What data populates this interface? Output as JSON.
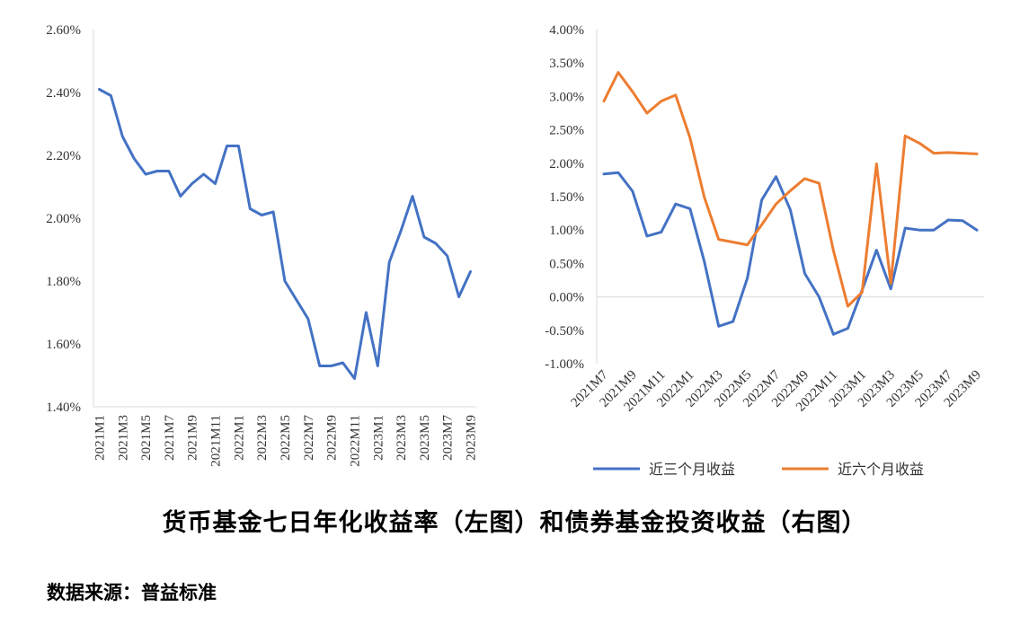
{
  "caption": "货币基金七日年化收益率（左图）和债券基金投资收益（右图）",
  "source": "数据来源：普益标准",
  "colors": {
    "blue": "#4472C4",
    "orange": "#ED7D31",
    "axis": "#D9D9D9",
    "text": "#333333"
  },
  "chart_data": [
    {
      "type": "line",
      "title": "",
      "categories": [
        "2021M1",
        "2021M2",
        "2021M3",
        "2021M4",
        "2021M5",
        "2021M6",
        "2021M7",
        "2021M8",
        "2021M9",
        "2021M10",
        "2021M11",
        "2021M12",
        "2022M1",
        "2022M2",
        "2022M3",
        "2022M4",
        "2022M5",
        "2022M6",
        "2022M7",
        "2022M8",
        "2022M9",
        "2022M10",
        "2022M11",
        "2022M12",
        "2023M1",
        "2023M2",
        "2023M3",
        "2023M4",
        "2023M5",
        "2023M6",
        "2023M7",
        "2023M8",
        "2023M9"
      ],
      "tick_labels": [
        "2021M1",
        "2021M3",
        "2021M5",
        "2021M7",
        "2021M9",
        "2021M11",
        "2022M1",
        "2022M3",
        "2022M5",
        "2022M7",
        "2022M9",
        "2022M11",
        "2023M1",
        "2023M3",
        "2023M5",
        "2023M7",
        "2023M9"
      ],
      "y_ticks": [
        "2.60%",
        "2.40%",
        "2.20%",
        "2.00%",
        "1.80%",
        "1.60%",
        "1.40%"
      ],
      "ylim": [
        1.4,
        2.6
      ],
      "grid": false,
      "series": [
        {
          "values": [
            2.41,
            2.39,
            2.26,
            2.19,
            2.14,
            2.15,
            2.15,
            2.07,
            2.11,
            2.14,
            2.11,
            2.23,
            2.23,
            2.03,
            2.01,
            2.02,
            1.8,
            1.74,
            1.68,
            1.53,
            1.53,
            1.54,
            1.49,
            1.7,
            1.53,
            1.86,
            1.96,
            2.07,
            1.94,
            1.92,
            1.88,
            1.75,
            1.83
          ],
          "color": "#4472C4"
        }
      ]
    },
    {
      "type": "line",
      "title": "",
      "categories": [
        "2021M7",
        "2021M8",
        "2021M9",
        "2021M10",
        "2021M11",
        "2021M12",
        "2022M1",
        "2022M2",
        "2022M3",
        "2022M4",
        "2022M5",
        "2022M6",
        "2022M7",
        "2022M8",
        "2022M9",
        "2022M10",
        "2022M11",
        "2022M12",
        "2023M1",
        "2023M2",
        "2023M3",
        "2023M4",
        "2023M5",
        "2023M6",
        "2023M7",
        "2023M8",
        "2023M9"
      ],
      "tick_labels": [
        "2021M7",
        "2021M9",
        "2021M11",
        "2022M1",
        "2022M3",
        "2022M5",
        "2022M7",
        "2022M9",
        "2022M11",
        "2023M1",
        "2023M3",
        "2023M5",
        "2023M7",
        "2023M9"
      ],
      "y_ticks": [
        "4.00%",
        "3.50%",
        "3.00%",
        "2.50%",
        "2.00%",
        "1.50%",
        "1.00%",
        "0.50%",
        "0.00%",
        "-0.50%",
        "-1.00%"
      ],
      "ylim": [
        -1.0,
        4.0
      ],
      "grid": false,
      "legend_position": "bottom",
      "series": [
        {
          "name": "近三个月收益",
          "color": "#4472C4",
          "values": [
            1.84,
            1.86,
            1.58,
            0.91,
            0.97,
            1.39,
            1.32,
            0.53,
            -0.44,
            -0.37,
            0.28,
            1.45,
            1.8,
            1.3,
            0.35,
            0.0,
            -0.56,
            -0.47,
            0.1,
            0.7,
            0.12,
            1.03,
            1.0,
            1.0,
            1.15,
            1.14,
            1.0
          ]
        },
        {
          "name": "近六个月收益",
          "color": "#ED7D31",
          "values": [
            2.93,
            3.36,
            3.07,
            2.75,
            2.93,
            3.02,
            2.38,
            1.49,
            0.86,
            0.82,
            0.78,
            1.08,
            1.39,
            1.59,
            1.77,
            1.7,
            0.69,
            -0.14,
            0.07,
            1.99,
            0.2,
            2.41,
            2.3,
            2.15,
            2.16,
            2.15,
            2.14
          ]
        }
      ]
    }
  ]
}
